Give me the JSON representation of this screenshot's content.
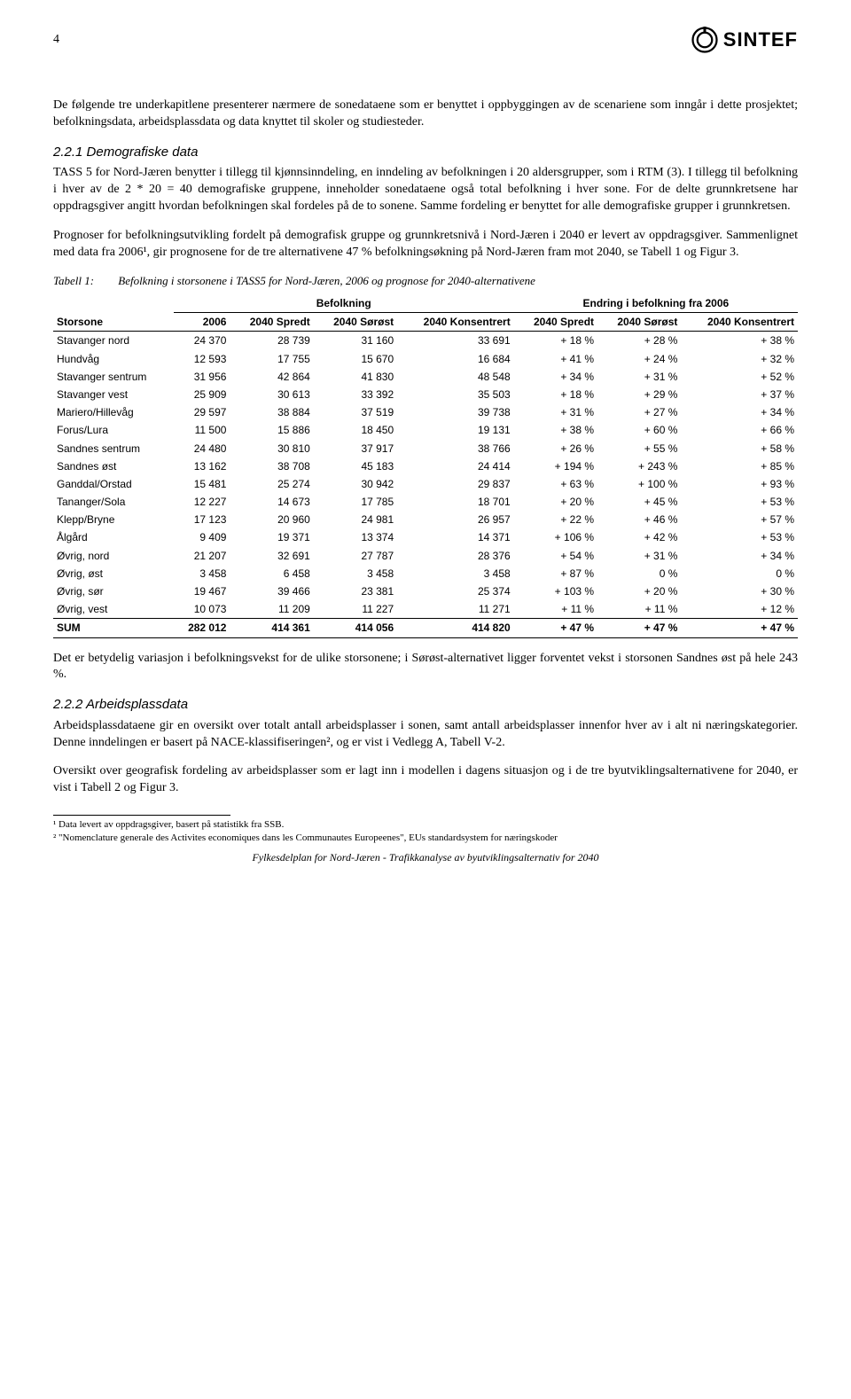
{
  "header": {
    "page_number": "4",
    "logo_text": "SINTEF"
  },
  "intro": "De følgende tre underkapitlene presenterer nærmere de sonedataene som er benyttet i oppbyggingen av de scenariene som inngår i dette prosjektet; befolkningsdata, arbeidsplassdata og data knyttet til skoler og studiesteder.",
  "section221": {
    "heading": "2.2.1 Demografiske data",
    "p1": "TASS 5 for Nord-Jæren benytter i tillegg til kjønnsinndeling, en inndeling av befolkningen i 20 aldersgrupper, som i RTM (3). I tillegg til befolkning i hver av de 2 * 20 = 40 demografiske gruppene, inneholder sonedataene også total befolkning i hver sone. For de delte grunnkretsene har oppdragsgiver angitt hvordan befolkningen skal fordeles på de to sonene. Samme fordeling er benyttet for alle demografiske grupper i grunnkretsen.",
    "p2": "Prognoser for befolkningsutvikling fordelt på demografisk gruppe og grunnkretsnivå i Nord-Jæren i 2040 er levert av oppdragsgiver. Sammenlignet med data fra 2006¹, gir prognosene for de tre alternativene 47 % befolkningsøkning på Nord-Jæren fram mot 2040, se Tabell 1 og Figur 3."
  },
  "table1": {
    "caption_label": "Tabell 1:",
    "caption_text": "Befolkning i storsonene i TASS5 for Nord-Jæren, 2006 og prognose for 2040-alternativene",
    "group_headers": [
      "Befolkning",
      "Endring i befolkning fra 2006"
    ],
    "columns": [
      "Storsone",
      "2006",
      "2040 Spredt",
      "2040 Sørøst",
      "2040 Konsentrert",
      "2040 Spredt",
      "2040 Sørøst",
      "2040 Konsentrert"
    ],
    "rows": [
      [
        "Stavanger nord",
        "24 370",
        "28 739",
        "31 160",
        "33 691",
        "+ 18 %",
        "+ 28 %",
        "+ 38 %"
      ],
      [
        "Hundvåg",
        "12 593",
        "17 755",
        "15 670",
        "16 684",
        "+ 41 %",
        "+ 24 %",
        "+ 32 %"
      ],
      [
        "Stavanger sentrum",
        "31 956",
        "42 864",
        "41 830",
        "48 548",
        "+ 34 %",
        "+ 31 %",
        "+ 52 %"
      ],
      [
        "Stavanger vest",
        "25 909",
        "30 613",
        "33 392",
        "35 503",
        "+ 18 %",
        "+ 29 %",
        "+ 37 %"
      ],
      [
        "Mariero/Hillevåg",
        "29 597",
        "38 884",
        "37 519",
        "39 738",
        "+ 31 %",
        "+ 27 %",
        "+ 34 %"
      ],
      [
        "Forus/Lura",
        "11 500",
        "15 886",
        "18 450",
        "19 131",
        "+ 38 %",
        "+ 60 %",
        "+ 66 %"
      ],
      [
        "Sandnes sentrum",
        "24 480",
        "30 810",
        "37 917",
        "38 766",
        "+ 26 %",
        "+ 55 %",
        "+ 58 %"
      ],
      [
        "Sandnes øst",
        "13 162",
        "38 708",
        "45 183",
        "24 414",
        "+ 194 %",
        "+ 243 %",
        "+ 85 %"
      ],
      [
        "Ganddal/Orstad",
        "15 481",
        "25 274",
        "30 942",
        "29 837",
        "+ 63 %",
        "+ 100 %",
        "+ 93 %"
      ],
      [
        "Tananger/Sola",
        "12 227",
        "14 673",
        "17 785",
        "18 701",
        "+ 20 %",
        "+ 45 %",
        "+ 53 %"
      ],
      [
        "Klepp/Bryne",
        "17 123",
        "20 960",
        "24 981",
        "26 957",
        "+ 22 %",
        "+ 46 %",
        "+ 57 %"
      ],
      [
        "Ålgård",
        "9 409",
        "19 371",
        "13 374",
        "14 371",
        "+ 106 %",
        "+ 42 %",
        "+ 53 %"
      ],
      [
        "Øvrig, nord",
        "21 207",
        "32 691",
        "27 787",
        "28 376",
        "+ 54 %",
        "+ 31 %",
        "+ 34 %"
      ],
      [
        "Øvrig, øst",
        "3 458",
        "6 458",
        "3 458",
        "3 458",
        "+ 87 %",
        "0 %",
        "0 %"
      ],
      [
        "Øvrig, sør",
        "19 467",
        "39 466",
        "23 381",
        "25 374",
        "+ 103 %",
        "+ 20 %",
        "+ 30 %"
      ],
      [
        "Øvrig, vest",
        "10 073",
        "11 209",
        "11 227",
        "11 271",
        "+ 11 %",
        "+ 11 %",
        "+ 12 %"
      ]
    ],
    "sum": [
      "SUM",
      "282 012",
      "414 361",
      "414 056",
      "414 820",
      "+ 47 %",
      "+ 47 %",
      "+ 47 %"
    ]
  },
  "after_table": "Det er betydelig variasjon i befolkningsvekst for de ulike storsonene; i Sørøst-alternativet ligger forventet vekst i storsonen Sandnes øst på hele 243 %.",
  "section222": {
    "heading": "2.2.2 Arbeidsplassdata",
    "p1": "Arbeidsplassdataene gir en oversikt over totalt antall arbeidsplasser i sonen, samt antall arbeidsplasser innenfor hver av i alt ni næringskategorier. Denne inndelingen er basert på NACE-klassifiseringen², og er vist i Vedlegg A, Tabell V-2.",
    "p2": "Oversikt over geografisk fordeling av arbeidsplasser som er lagt inn i modellen i dagens situasjon og i de tre byutviklingsalternativene for 2040, er vist i Tabell 2 og Figur 3."
  },
  "footnotes": {
    "fn1": "¹ Data levert av oppdragsgiver, basert på statistikk fra SSB.",
    "fn2": "² \"Nomenclature generale des Activites economiques dans les Communautes Europeenes\", EUs standardsystem for næringskoder"
  },
  "footer": "Fylkesdelplan for Nord-Jæren - Trafikkanalyse av byutviklingsalternativ for 2040"
}
